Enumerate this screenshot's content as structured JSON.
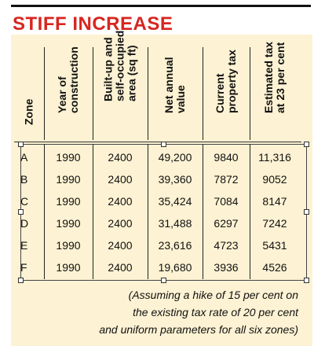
{
  "title": "STIFF INCREASE",
  "table": {
    "headers": [
      "Zone",
      "Year of\nconstruction",
      "Built-up and\nself-occupied\narea (sq ft)",
      "Net annual\nvalue",
      "Current\nproperty tax",
      "Estimated tax\nat 23 per cent"
    ],
    "rows": [
      [
        "A",
        "1990",
        "2400",
        "49,200",
        "9840",
        "11,316"
      ],
      [
        "B",
        "1990",
        "2400",
        "39,360",
        "7872",
        "9052"
      ],
      [
        "C",
        "1990",
        "2400",
        "35,424",
        "7084",
        "8147"
      ],
      [
        "D",
        "1990",
        "2400",
        "31,488",
        "6297",
        "7242"
      ],
      [
        "E",
        "1990",
        "2400",
        "23,616",
        "4723",
        "5431"
      ],
      [
        "F",
        "1990",
        "2400",
        "19,680",
        "3936",
        "4526"
      ]
    ]
  },
  "footnote": [
    "(Assuming a hike of 15 per cent on",
    "the existing tax rate of 20 per cent",
    "and uniform parameters for all six zones)"
  ],
  "colors": {
    "title": "#d8251f",
    "panel": "#fdf2d3",
    "text": "#111111"
  }
}
